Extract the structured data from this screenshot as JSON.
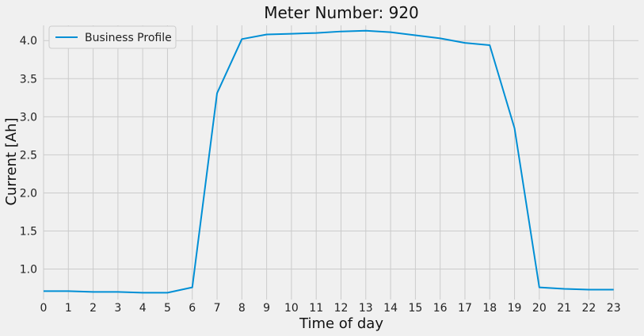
{
  "chart_data": {
    "type": "line",
    "title": "Meter Number: 920",
    "xlabel": "Time of day",
    "ylabel": "Current [Ah]",
    "x": [
      0,
      1,
      2,
      3,
      4,
      5,
      6,
      7,
      8,
      9,
      10,
      11,
      12,
      13,
      14,
      15,
      16,
      17,
      18,
      19,
      20,
      21,
      22,
      23
    ],
    "series": [
      {
        "name": "Business Profile",
        "color": "#008fd5",
        "values": [
          0.71,
          0.71,
          0.7,
          0.7,
          0.69,
          0.69,
          0.76,
          3.31,
          4.02,
          4.08,
          4.09,
          4.1,
          4.12,
          4.13,
          4.11,
          4.07,
          4.03,
          3.97,
          3.94,
          2.85,
          0.76,
          0.74,
          0.73,
          0.73
        ]
      }
    ],
    "xticks": [
      "0",
      "1",
      "2",
      "3",
      "4",
      "5",
      "6",
      "7",
      "8",
      "9",
      "10",
      "11",
      "12",
      "13",
      "14",
      "15",
      "16",
      "17",
      "18",
      "19",
      "20",
      "21",
      "22",
      "23"
    ],
    "yticks": [
      "1.0",
      "1.5",
      "2.0",
      "2.5",
      "3.0",
      "3.5",
      "4.0"
    ],
    "xlim": [
      0,
      24
    ],
    "ylim": [
      0.6,
      4.2
    ],
    "grid": true,
    "legend_position": "top-left"
  }
}
